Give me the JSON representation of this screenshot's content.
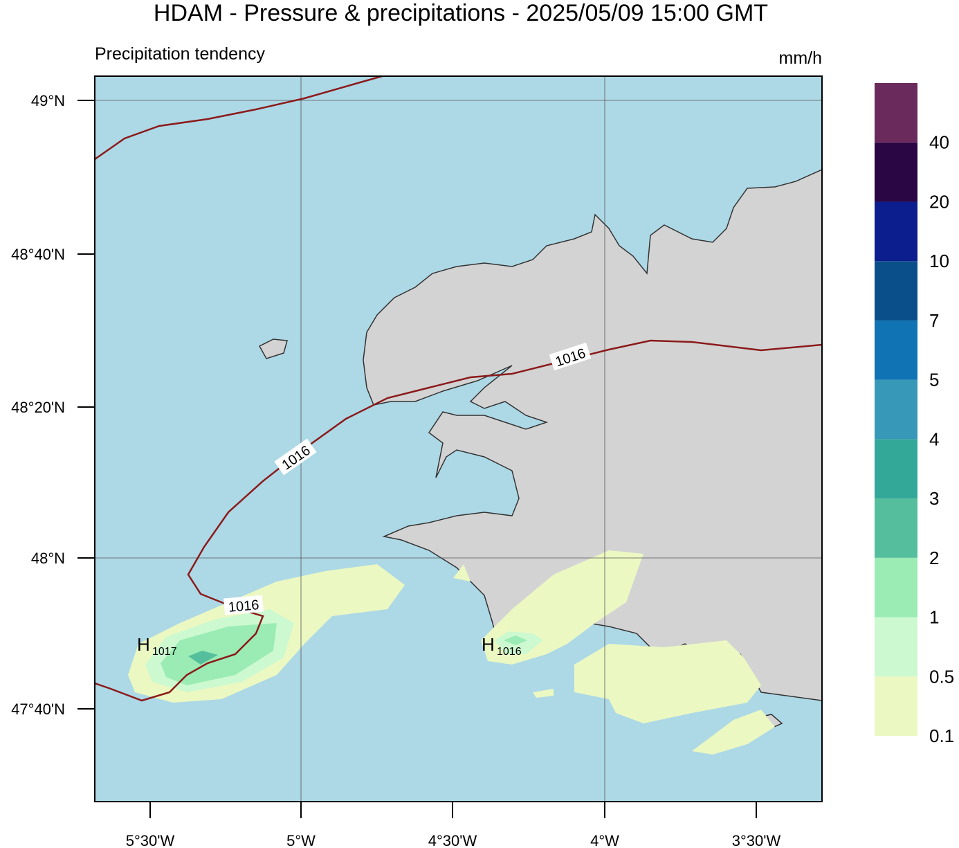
{
  "header": {
    "title": "HDAM - Pressure & precipitations  -  2025/05/09  15:00 GMT",
    "subtitle": "Precipitation tendency",
    "unit": "mm/h"
  },
  "map": {
    "lat_ticks": [
      "49°N",
      "48°40'N",
      "48°20'N",
      "48°N",
      "47°40'N"
    ],
    "lon_ticks": [
      "5°30'W",
      "5°W",
      "4°30'W",
      "4°W",
      "3°30'W"
    ],
    "isobar_labels": [
      "1016",
      "1016",
      "1016"
    ],
    "highs": [
      {
        "letter": "H",
        "value": "1017"
      },
      {
        "letter": "H",
        "value": "1016"
      }
    ]
  },
  "colorbar": {
    "levels": [
      0.1,
      0.5,
      1,
      2,
      3,
      4,
      5,
      7,
      10,
      20,
      40
    ],
    "colors": [
      "#ebf8c2",
      "#cdf9d0",
      "#9aecb4",
      "#55bf9d",
      "#33a899",
      "#3799b7",
      "#0f73b4",
      "#0b4f8a",
      "#0c1e8e",
      "#2a0645",
      "#6a2a5c"
    ]
  }
}
